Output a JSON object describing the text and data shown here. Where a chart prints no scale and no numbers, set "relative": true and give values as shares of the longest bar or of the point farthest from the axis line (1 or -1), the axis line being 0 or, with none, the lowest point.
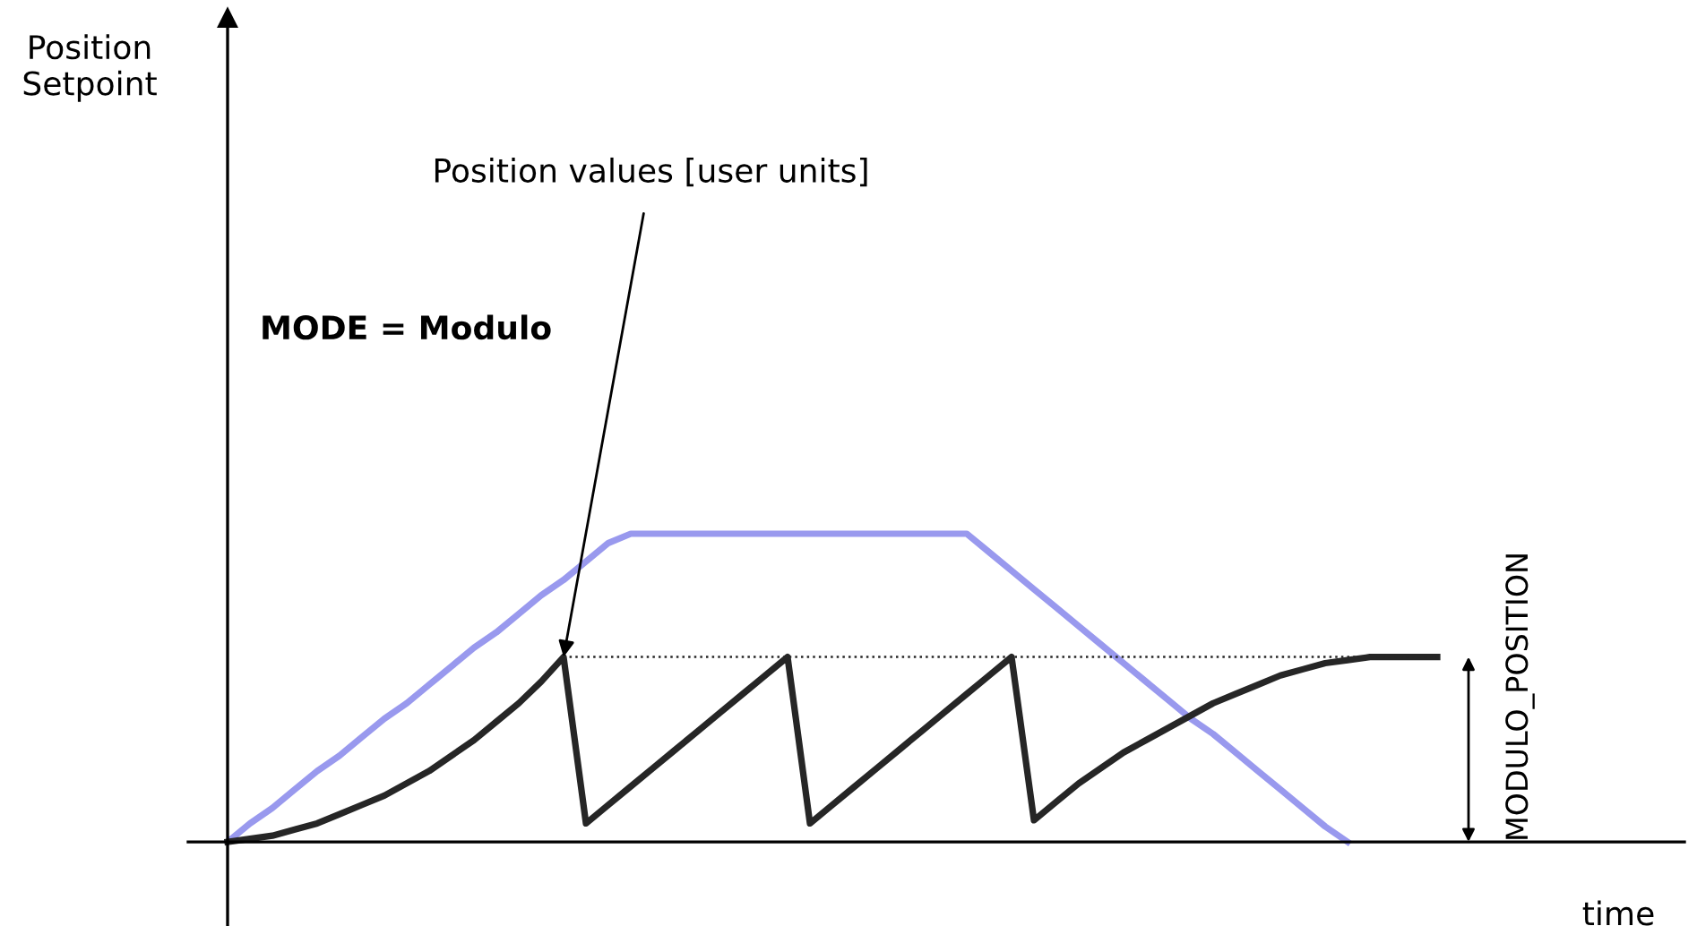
{
  "chart_data": {
    "type": "line",
    "relative": true,
    "xlabel": "time",
    "legend": false,
    "marker": "none",
    "categories": [
      null,
      null,
      null,
      null,
      null,
      null,
      null,
      null,
      null,
      null,
      null,
      null,
      null,
      null,
      null,
      null,
      null,
      null,
      null,
      null,
      null,
      null,
      null,
      null,
      null,
      null,
      null,
      null,
      null,
      null,
      null,
      null,
      null,
      null,
      null,
      null,
      null,
      null,
      null,
      null,
      null,
      null,
      null,
      null,
      null,
      null,
      null,
      null,
      null,
      null,
      null,
      null,
      null,
      null,
      null
    ],
    "series": [
      {
        "color": "#9999ee",
        "values": [
          0,
          0.06,
          0.11,
          0.17,
          0.23,
          0.28,
          0.34,
          0.4,
          0.45,
          0.51,
          0.57,
          0.63,
          0.68,
          0.74,
          0.8,
          0.85,
          0.91,
          0.97,
          1,
          1,
          1,
          1,
          1,
          1,
          1,
          1,
          1,
          1,
          1,
          1,
          1,
          1,
          1,
          1,
          0.94,
          0.88,
          0.82,
          0.76,
          0.7,
          0.64,
          0.58,
          0.52,
          0.46,
          0.4,
          0.35,
          0.29,
          0.23,
          0.17,
          0.11,
          0.05,
          0,
          null,
          null,
          null,
          null
        ]
      },
      {
        "color": "#262626",
        "values": [
          0,
          0.01,
          0.02,
          0.04,
          0.06,
          0.09,
          0.12,
          0.15,
          0.19,
          0.23,
          0.28,
          0.33,
          0.39,
          0.45,
          0.52,
          0.6,
          0.06,
          0.12,
          0.18,
          0.24,
          0.3,
          0.36,
          0.42,
          0.48,
          0.54,
          0.6,
          0.06,
          0.12,
          0.18,
          0.24,
          0.3,
          0.36,
          0.42,
          0.48,
          0.54,
          0.6,
          0.07,
          0.13,
          0.19,
          0.24,
          0.29,
          0.33,
          0.37,
          0.41,
          0.45,
          0.48,
          0.51,
          0.54,
          0.56,
          0.58,
          0.59,
          0.6,
          0.6,
          0.6,
          0.6
        ]
      },
      {
        "color": "#262626",
        "line_style": "dotted",
        "values": [
          null,
          null,
          null,
          null,
          null,
          null,
          null,
          null,
          null,
          null,
          null,
          null,
          null,
          null,
          null,
          0.6,
          0.6,
          0.6,
          0.6,
          0.6,
          0.6,
          0.6,
          0.6,
          0.6,
          0.6,
          0.6,
          0.6,
          0.6,
          0.6,
          0.6,
          0.6,
          0.6,
          0.6,
          0.6,
          0.6,
          0.6,
          0.6,
          0.6,
          0.6,
          0.6,
          0.6,
          0.6,
          0.6,
          0.6,
          0.6,
          0.6,
          0.6,
          0.6,
          0.6,
          0.6,
          0.6,
          0.6,
          0.6,
          0.6,
          0.6
        ]
      }
    ],
    "annotations": [
      "Position\nSetpoint",
      "Position values [user units]",
      "MODE = Modulo",
      "MODULO_POSITION"
    ]
  }
}
